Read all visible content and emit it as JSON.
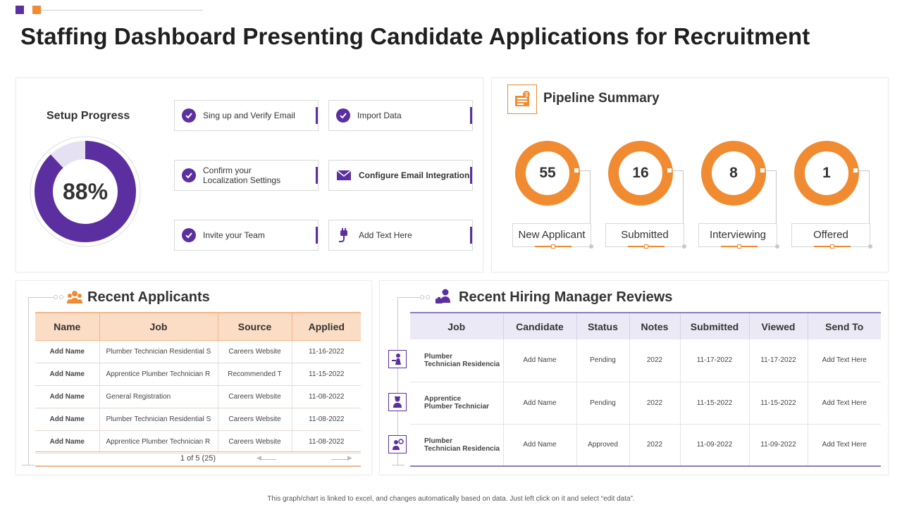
{
  "page": {
    "title": "Staffing Dashboard Presenting Candidate Applications for Recruitment",
    "footer_note": "This graph/chart is linked to excel, and changes automatically based on data. Just left click on it and select “edit data”."
  },
  "colors": {
    "purple": "#5b2fa0",
    "orange": "#f08b32",
    "light_purple": "#e6e0f3",
    "peach": "#fbdcc5"
  },
  "setup": {
    "title": "Setup Progress",
    "percent_label": "88%",
    "percent_value": 0.88,
    "tasks": [
      {
        "label": "Sing up and Verify Email",
        "icon": "check-circle-icon"
      },
      {
        "label": "Import Data",
        "icon": "check-circle-icon"
      },
      {
        "label": "Confirm your\nLocalization Settings",
        "icon": "check-circle-icon"
      },
      {
        "label": "Configure Email Integration",
        "icon": "envelope-icon"
      },
      {
        "label": "Invite your Team",
        "icon": "check-circle-icon"
      },
      {
        "label": "Add Text Here",
        "icon": "plug-icon"
      }
    ]
  },
  "pipeline": {
    "title": "Pipeline Summary",
    "icon": "pipeline-icon",
    "stages": [
      {
        "count": "55",
        "label": "New Applicant"
      },
      {
        "count": "16",
        "label": "Submitted"
      },
      {
        "count": "8",
        "label": "Interviewing"
      },
      {
        "count": "1",
        "label": "Offered"
      }
    ]
  },
  "applicants": {
    "title": "Recent Applicants",
    "icon": "people-icon",
    "columns": [
      "Name",
      "Job",
      "Source",
      "Applied"
    ],
    "rows": [
      [
        "Add Name",
        "Plumber Technician Residential S",
        "Careers Website",
        "11-16-2022"
      ],
      [
        "Add Name",
        "Apprentice Plumber Technician R",
        "Recommended T",
        "11-15-2022"
      ],
      [
        "Add Name",
        "General Registration",
        "Careers Website",
        "11-08-2022"
      ],
      [
        "Add Name",
        "Plumber Technician Residential S",
        "Careers Website",
        "11-08-2022"
      ],
      [
        "Add Name",
        "Apprentice Plumber Technician R",
        "Careers Website",
        "11-08-2022"
      ]
    ],
    "pager": "1 of 5 (25)"
  },
  "reviews": {
    "title": "Recent Hiring Manager Reviews",
    "icon": "manager-icon",
    "columns": [
      "Job",
      "Candidate",
      "Status",
      "Notes",
      "Submitted",
      "Viewed",
      "Send To"
    ],
    "rows": [
      [
        "Plumber\nTechnician Residencia",
        "Add Name",
        "Pending",
        "2022",
        "11-17-2022",
        "11-17-2022",
        "Add Text Here"
      ],
      [
        "Apprentice\n Plumber Techniciar",
        "Add Name",
        "Pending",
        "2022",
        "11-15-2022",
        "11-15-2022",
        "Add Text Here"
      ],
      [
        "Plumber\nTechnician Residencia",
        "Add Name",
        "Approved",
        "2022",
        "11-09-2022",
        "11-09-2022",
        "Add Text Here"
      ]
    ],
    "row_icons": [
      "worker-icon",
      "technician-icon",
      "tools-icon"
    ]
  }
}
